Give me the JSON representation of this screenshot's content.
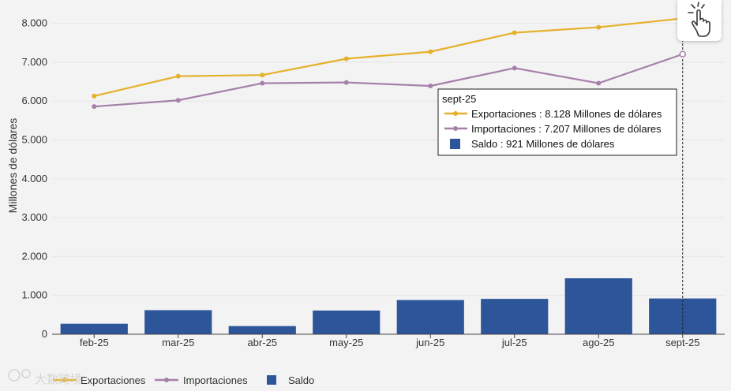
{
  "chart_data": {
    "type": "bar+line",
    "categories": [
      "feb-25",
      "mar-25",
      "abr-25",
      "may-25",
      "jun-25",
      "jul-25",
      "ago-25",
      "sept-25"
    ],
    "series": [
      {
        "name": "Exportaciones",
        "type": "line",
        "color": "#e6b12a",
        "values": [
          6130,
          6640,
          6670,
          7090,
          7270,
          7760,
          7900,
          8128
        ]
      },
      {
        "name": "Importaciones",
        "type": "line",
        "color": "#a57fa8",
        "values": [
          5860,
          6020,
          6460,
          6480,
          6390,
          6850,
          6460,
          7207
        ]
      },
      {
        "name": "Saldo",
        "type": "bar",
        "color": "#2d5599",
        "values": [
          270,
          620,
          210,
          610,
          880,
          910,
          1440,
          921
        ]
      }
    ],
    "title": "",
    "xlabel": "",
    "ylabel": "Millones de dólares",
    "ylim": [
      0,
      8500
    ],
    "yticks": [
      {
        "value": 0,
        "label": "0"
      },
      {
        "value": 1000,
        "label": "1.000"
      },
      {
        "value": 2000,
        "label": "2.000"
      },
      {
        "value": 3000,
        "label": "3.000"
      },
      {
        "value": 4000,
        "label": "4.000"
      },
      {
        "value": 5000,
        "label": "5.000"
      },
      {
        "value": 6000,
        "label": "6.000"
      },
      {
        "value": 7000,
        "label": "7.000"
      },
      {
        "value": 8000,
        "label": "8.000"
      }
    ],
    "grid": true,
    "legend": {
      "position": "bottom-left",
      "items": [
        "Exportaciones",
        "Importaciones",
        "Saldo"
      ]
    },
    "tooltip": {
      "category": "sept-25",
      "header": "sept-25",
      "rows": [
        {
          "series": "Exportaciones",
          "text": "Exportaciones : 8.128 Millones de dólares"
        },
        {
          "series": "Importaciones",
          "text": "Importaciones : 7.207 Millones de dólares"
        },
        {
          "series": "Saldo",
          "text": "Saldo : 921 Millones de dólares"
        }
      ]
    }
  },
  "toolbar": {
    "cursor_icon": "pointer-hand-icon"
  },
  "watermark": {
    "text": "大数跨境"
  }
}
